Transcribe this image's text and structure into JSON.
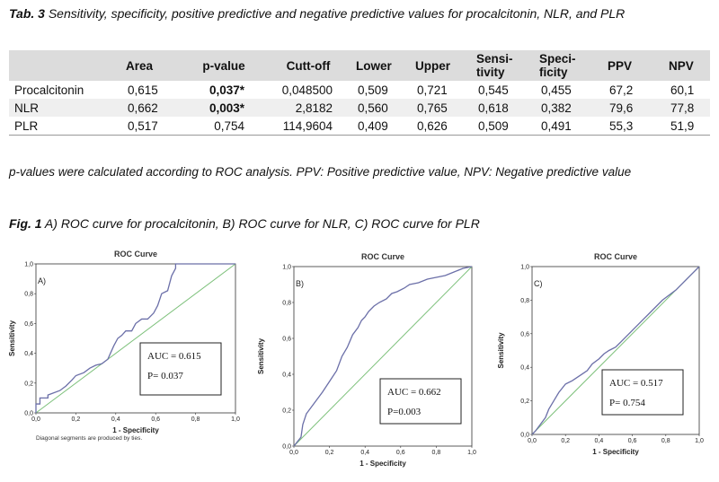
{
  "table_caption": {
    "label": "Tab. 3",
    "text": " Sensitivity, specificity, positive predictive and negative predictive values for procalcitonin, NLR, and PLR"
  },
  "table": {
    "headers": [
      "",
      "Area",
      "p-value",
      "Cutt-off",
      "Lower",
      "Upper",
      "Sensi-tivity",
      "Speci-ficity",
      "PPV",
      "NPV"
    ],
    "header_lines": [
      [
        ""
      ],
      [
        "Area"
      ],
      [
        "p-value"
      ],
      [
        "Cutt-off"
      ],
      [
        "Lower"
      ],
      [
        "Upper"
      ],
      [
        "Sensi-",
        "tivity"
      ],
      [
        "Speci-",
        "ficity"
      ],
      [
        "PPV"
      ],
      [
        "NPV"
      ]
    ],
    "rows": [
      [
        "Procalcitonin",
        "0,615",
        "0,037*",
        "0,048500",
        "0,509",
        "0,721",
        "0,545",
        "0,455",
        "67,2",
        "60,1"
      ],
      [
        "NLR",
        "0,662",
        "0,003*",
        "2,8182",
        "0,560",
        "0,765",
        "0,618",
        "0,382",
        "79,6",
        "77,8"
      ],
      [
        "PLR",
        "0,517",
        "0,754",
        "114,9604",
        "0,409",
        "0,626",
        "0,509",
        "0,491",
        "55,3",
        "51,9"
      ]
    ]
  },
  "table_note": "p-values were calculated according to ROC analysis. PPV: Positive predictive value, NPV: Negative predictive value",
  "figure_caption": {
    "label": "Fig. 1",
    "text": " A) ROC curve for procalcitonin, B) ROC curve for NLR, C) ROC curve for PLR"
  },
  "colors": {
    "curve": "#6b6fa8",
    "diagonal": "#7cc07a",
    "header_bg": "#dcdcdc",
    "shade_bg": "#efefef"
  },
  "chart_data": [
    {
      "type": "line",
      "panel": "A)",
      "title": "ROC Curve",
      "xlabel": "1 - Specificity",
      "ylabel": "Sensitivity",
      "xlim": [
        0,
        1
      ],
      "ylim": [
        0,
        1
      ],
      "ticks": [
        "0,0",
        "0,2",
        "0,4",
        "0,6",
        "0,8",
        "1,0"
      ],
      "annotation": [
        "AUC = 0.615",
        "P= 0.037"
      ],
      "footnote": "Diagonal segments are produced by ties.",
      "series": [
        {
          "x": [
            0,
            0,
            0.02,
            0.02,
            0.06,
            0.06,
            0.12,
            0.15,
            0.18,
            0.2,
            0.24,
            0.27,
            0.3,
            0.33,
            0.36,
            0.39,
            0.41,
            0.43,
            0.45,
            0.48,
            0.5,
            0.53,
            0.56,
            0.59,
            0.61,
            0.63,
            0.66,
            0.68,
            0.7,
            0.7,
            1
          ],
          "y": [
            0,
            0.06,
            0.06,
            0.1,
            0.1,
            0.12,
            0.15,
            0.18,
            0.22,
            0.25,
            0.27,
            0.3,
            0.32,
            0.33,
            0.36,
            0.45,
            0.5,
            0.52,
            0.55,
            0.55,
            0.6,
            0.63,
            0.63,
            0.67,
            0.72,
            0.8,
            0.82,
            0.92,
            0.97,
            1,
            1
          ]
        },
        {
          "x": [
            0,
            1
          ],
          "y": [
            0,
            1
          ]
        }
      ]
    },
    {
      "type": "line",
      "panel": "B)",
      "title": "ROC Curve",
      "xlabel": "1 - Specificity",
      "ylabel": "Sensitivity",
      "xlim": [
        0,
        1
      ],
      "ylim": [
        0,
        1
      ],
      "ticks": [
        "0,0",
        "0,2",
        "0,4",
        "0,6",
        "0,8",
        "1,0"
      ],
      "annotation": [
        "AUC = 0.662",
        "P=0.003"
      ],
      "series": [
        {
          "x": [
            0,
            0.04,
            0.05,
            0.07,
            0.1,
            0.13,
            0.16,
            0.2,
            0.24,
            0.27,
            0.3,
            0.33,
            0.36,
            0.38,
            0.4,
            0.42,
            0.45,
            0.48,
            0.52,
            0.55,
            0.58,
            0.62,
            0.65,
            0.7,
            0.75,
            0.8,
            0.85,
            0.9,
            0.95,
            1
          ],
          "y": [
            0,
            0.05,
            0.12,
            0.18,
            0.22,
            0.26,
            0.3,
            0.36,
            0.42,
            0.5,
            0.55,
            0.62,
            0.66,
            0.7,
            0.72,
            0.75,
            0.78,
            0.8,
            0.82,
            0.85,
            0.86,
            0.88,
            0.9,
            0.91,
            0.93,
            0.94,
            0.95,
            0.97,
            0.99,
            1
          ]
        },
        {
          "x": [
            0,
            1
          ],
          "y": [
            0,
            1
          ]
        }
      ]
    },
    {
      "type": "line",
      "panel": "C)",
      "title": "ROC Curve",
      "xlabel": "1 - Specificity",
      "ylabel": "Sensitivity",
      "xlim": [
        0,
        1
      ],
      "ylim": [
        0,
        1
      ],
      "ticks": [
        "0,0",
        "0,2",
        "0,4",
        "0,6",
        "0,8",
        "1,0"
      ],
      "annotation": [
        "AUC = 0.517",
        "P= 0.754"
      ],
      "series": [
        {
          "x": [
            0,
            0.02,
            0.05,
            0.08,
            0.1,
            0.13,
            0.16,
            0.2,
            0.24,
            0.27,
            0.3,
            0.33,
            0.36,
            0.4,
            0.43,
            0.46,
            0.5,
            0.53,
            0.56,
            0.6,
            0.63,
            0.66,
            0.7,
            0.74,
            0.78,
            0.82,
            0.86,
            0.9,
            0.95,
            1
          ],
          "y": [
            0,
            0.02,
            0.06,
            0.1,
            0.15,
            0.2,
            0.25,
            0.3,
            0.32,
            0.34,
            0.36,
            0.38,
            0.42,
            0.45,
            0.48,
            0.5,
            0.52,
            0.55,
            0.58,
            0.62,
            0.65,
            0.68,
            0.72,
            0.76,
            0.8,
            0.83,
            0.86,
            0.9,
            0.95,
            1
          ]
        },
        {
          "x": [
            0,
            1
          ],
          "y": [
            0,
            1
          ]
        }
      ]
    }
  ]
}
